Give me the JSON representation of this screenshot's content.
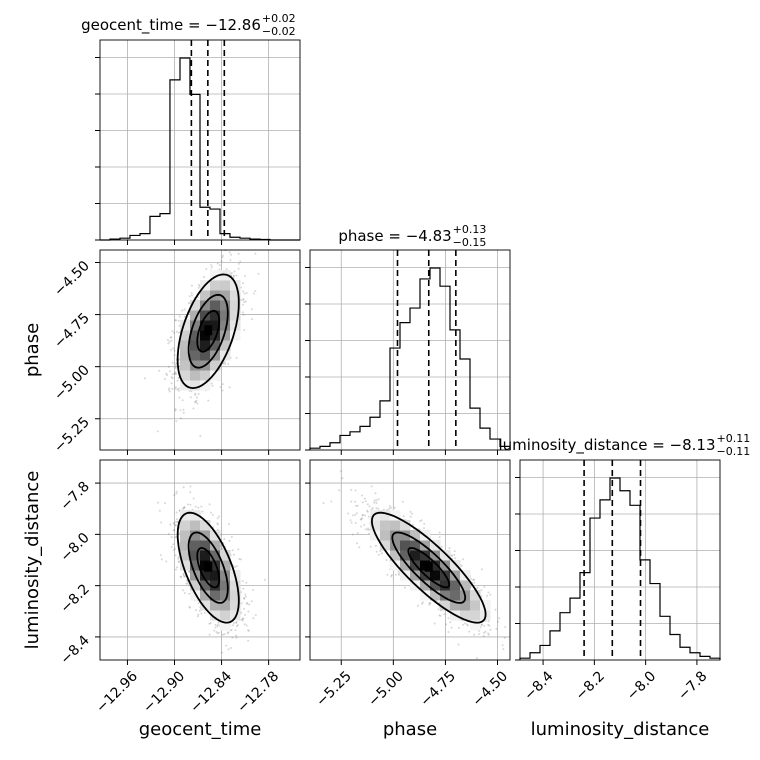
{
  "chart_data": {
    "type": "corner",
    "parameters": [
      "geocent_time",
      "phase",
      "luminosity_distance"
    ],
    "axis_labels": [
      "geocent_time",
      "phase",
      "luminosity_distance"
    ],
    "grid": true,
    "titles": [
      {
        "name": "geocent_time",
        "median": "−12.86",
        "plus": "+0.02",
        "minus": "−0.02"
      },
      {
        "name": "phase",
        "median": "−4.83",
        "plus": "+0.13",
        "minus": "−0.15"
      },
      {
        "name": "luminosity_distance",
        "median": "−8.13",
        "plus": "+0.11",
        "minus": "−0.11"
      }
    ],
    "ranges": [
      [
        -12.995,
        -12.74
      ],
      [
        -5.4,
        -4.44
      ],
      [
        -8.49,
        -7.71
      ]
    ],
    "ticks": [
      {
        "values": [
          -12.96,
          -12.9,
          -12.84,
          -12.78
        ],
        "labels": [
          "−12.96",
          "−12.90",
          "−12.84",
          "−12.78"
        ]
      },
      {
        "values": [
          -5.25,
          -5.0,
          -4.75,
          -4.5
        ],
        "labels": [
          "−5.25",
          "−5.00",
          "−4.75",
          "−4.50"
        ]
      },
      {
        "values": [
          -8.4,
          -8.2,
          -8.0,
          -7.8
        ],
        "labels": [
          "−8.4",
          "−8.2",
          "−8.0",
          "−7.8"
        ]
      }
    ],
    "quantiles": [
      [
        -12.8785,
        -12.8575,
        -12.8365
      ],
      [
        -4.98,
        -4.83,
        -4.7
      ],
      [
        -8.24,
        -8.13,
        -8.02
      ]
    ],
    "histograms": [
      {
        "edges": [
          -12.995,
          -12.9823,
          -12.9695,
          -12.9568,
          -12.944,
          -12.9313,
          -12.9185,
          -12.9058,
          -12.893,
          -12.8803,
          -12.8675,
          -12.8548,
          -12.842,
          -12.8293,
          -12.8165,
          -12.8038,
          -12.791,
          -12.7783,
          -12.7655,
          -12.7528,
          -12.74
        ],
        "counts": [
          0,
          0.005,
          0.01,
          0.025,
          0.035,
          0.13,
          0.145,
          0.88,
          1.0,
          0.8,
          0.18,
          0.17,
          0.035,
          0.015,
          0.01,
          0.005,
          0.003,
          0,
          0,
          0
        ]
      },
      {
        "edges": [
          -5.4,
          -5.352,
          -5.304,
          -5.256,
          -5.208,
          -5.16,
          -5.112,
          -5.064,
          -5.016,
          -4.968,
          -4.92,
          -4.872,
          -4.824,
          -4.776,
          -4.728,
          -4.68,
          -4.632,
          -4.584,
          -4.536,
          -4.488,
          -4.44
        ],
        "counts": [
          0.01,
          0.02,
          0.04,
          0.08,
          0.1,
          0.13,
          0.18,
          0.27,
          0.56,
          0.7,
          0.78,
          0.94,
          1.0,
          0.9,
          0.66,
          0.5,
          0.23,
          0.12,
          0.06,
          0.02
        ]
      },
      {
        "edges": [
          -8.49,
          -8.451,
          -8.412,
          -8.373,
          -8.334,
          -8.295,
          -8.256,
          -8.217,
          -8.178,
          -8.139,
          -8.1,
          -8.061,
          -8.022,
          -7.983,
          -7.944,
          -7.905,
          -7.866,
          -7.827,
          -7.788,
          -7.749,
          -7.71
        ],
        "counts": [
          0.01,
          0.04,
          0.08,
          0.16,
          0.26,
          0.34,
          0.48,
          0.78,
          0.88,
          1.0,
          0.93,
          0.85,
          0.55,
          0.42,
          0.24,
          0.14,
          0.07,
          0.04,
          0.02,
          0.01
        ]
      }
    ],
    "pairs": [
      {
        "x": "geocent_time",
        "y": "phase",
        "mean": [
          -12.857,
          -4.83
        ],
        "std": [
          0.02,
          0.14
        ],
        "corr": 0.5
      },
      {
        "x": "geocent_time",
        "y": "luminosity_distance",
        "mean": [
          -12.857,
          -8.13
        ],
        "std": [
          0.02,
          0.11
        ],
        "corr": -0.6
      },
      {
        "x": "phase",
        "y": "luminosity_distance",
        "mean": [
          -4.83,
          -8.13
        ],
        "std": [
          0.14,
          0.11
        ],
        "corr": -0.85
      }
    ]
  }
}
